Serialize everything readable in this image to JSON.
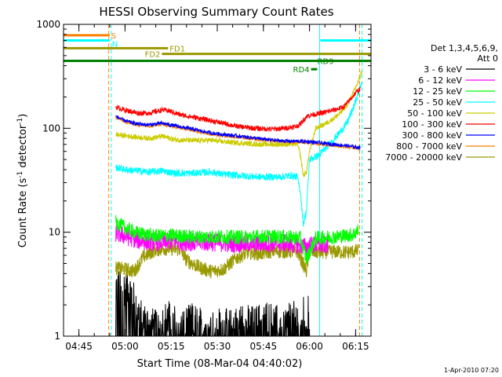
{
  "chart_data": {
    "type": "line",
    "title": "HESSI Observing Summary Count Rates",
    "xlabel": "Start Time (08-Mar-04 04:40:02)",
    "ylabel_parts": [
      "Count Rate (s",
      "-1",
      " detector",
      "-1",
      ")"
    ],
    "yscale": "log",
    "ylim": [
      1,
      1000
    ],
    "xlim_minutes": [
      0,
      100
    ],
    "x_ticks": [
      {
        "t": 5,
        "label": "04:45"
      },
      {
        "t": 20,
        "label": "05:00"
      },
      {
        "t": 35,
        "label": "05:15"
      },
      {
        "t": 50,
        "label": "05:30"
      },
      {
        "t": 65,
        "label": "05:45"
      },
      {
        "t": 80,
        "label": "06:00"
      },
      {
        "t": 95,
        "label": "06:15"
      }
    ],
    "y_ticks": [
      {
        "v": 1,
        "label": "1"
      },
      {
        "v": 10,
        "label": "10"
      },
      {
        "v": 100,
        "label": "100"
      },
      {
        "v": 1000,
        "label": "1000"
      }
    ],
    "legend_header": [
      "Det 1,3,4,5,6,9,",
      "Att 0"
    ],
    "series": [
      {
        "name": "3 - 6 keV",
        "color": "#000000",
        "points": [
          [
            17,
            3
          ],
          [
            20,
            2.9
          ],
          [
            22,
            2.6
          ],
          [
            24,
            1.8
          ],
          [
            26,
            1.4
          ],
          [
            30,
            1.2
          ],
          [
            34,
            1.5
          ],
          [
            38,
            1.2
          ],
          [
            42,
            1.4
          ],
          [
            46,
            1.2
          ],
          [
            50,
            1.3
          ],
          [
            54,
            1.2
          ],
          [
            58,
            1.4
          ],
          [
            62,
            1.3
          ],
          [
            66,
            1.5
          ],
          [
            70,
            1.3
          ],
          [
            74,
            1.4
          ],
          [
            78,
            1.6
          ],
          [
            80,
            1.8
          ]
        ],
        "noise": 0.18
      },
      {
        "name": "6 - 12 keV",
        "color": "#ff00ff",
        "points": [
          [
            17,
            9.8
          ],
          [
            20,
            9.2
          ],
          [
            24,
            8.4
          ],
          [
            30,
            8.0
          ],
          [
            36,
            8.2
          ],
          [
            42,
            8.0
          ],
          [
            48,
            8.0
          ],
          [
            54,
            7.8
          ],
          [
            60,
            7.8
          ],
          [
            66,
            7.8
          ],
          [
            72,
            7.8
          ],
          [
            76,
            7.6
          ],
          [
            79,
            7.2
          ],
          [
            80,
            7.5
          ],
          [
            84,
            7.5
          ],
          [
            86,
            7.6
          ]
        ],
        "noise": 0.09
      },
      {
        "name": "12 - 25 keV",
        "color": "#00ff00",
        "points": [
          [
            17,
            12.5
          ],
          [
            20,
            11
          ],
          [
            24,
            9.8
          ],
          [
            30,
            9.2
          ],
          [
            36,
            9.3
          ],
          [
            42,
            9.0
          ],
          [
            48,
            9.0
          ],
          [
            54,
            9.0
          ],
          [
            60,
            9.0
          ],
          [
            66,
            9.1
          ],
          [
            72,
            9.0
          ],
          [
            77,
            8.8
          ],
          [
            79,
            5.5
          ],
          [
            80,
            6.5
          ],
          [
            82,
            8.8
          ],
          [
            88,
            9.0
          ],
          [
            94,
            9.5
          ],
          [
            96,
            10.5
          ]
        ],
        "noise": 0.07
      },
      {
        "name": "25 - 50 keV",
        "color": "#00ffff",
        "points": [
          [
            17,
            42
          ],
          [
            20,
            40
          ],
          [
            24,
            39
          ],
          [
            28,
            38
          ],
          [
            32,
            39
          ],
          [
            36,
            37
          ],
          [
            42,
            37
          ],
          [
            48,
            38
          ],
          [
            52,
            36
          ],
          [
            58,
            35
          ],
          [
            64,
            34
          ],
          [
            70,
            34
          ],
          [
            74,
            35
          ],
          [
            76,
            34
          ],
          [
            77,
            25
          ],
          [
            78,
            12
          ],
          [
            79,
            16
          ],
          [
            80,
            50
          ],
          [
            83,
            55
          ],
          [
            86,
            68
          ],
          [
            89,
            85
          ],
          [
            92,
            110
          ],
          [
            94,
            150
          ],
          [
            96,
            220
          ],
          [
            97,
            280
          ]
        ],
        "noise": 0.035
      },
      {
        "name": "50 - 100 keV",
        "color": "#cccc00",
        "points": [
          [
            17,
            87
          ],
          [
            20,
            85
          ],
          [
            24,
            82
          ],
          [
            28,
            80
          ],
          [
            32,
            84
          ],
          [
            36,
            78
          ],
          [
            42,
            76
          ],
          [
            48,
            77
          ],
          [
            52,
            74
          ],
          [
            58,
            72
          ],
          [
            64,
            70
          ],
          [
            70,
            70
          ],
          [
            74,
            70
          ],
          [
            76,
            72
          ],
          [
            77,
            55
          ],
          [
            78,
            35
          ],
          [
            79,
            38
          ],
          [
            80,
            60
          ],
          [
            82,
            100
          ],
          [
            85,
            110
          ],
          [
            88,
            125
          ],
          [
            90,
            140
          ],
          [
            92,
            165
          ],
          [
            94,
            210
          ],
          [
            96,
            290
          ],
          [
            97,
            350
          ]
        ],
        "noise": 0.025
      },
      {
        "name": "100 - 300 keV",
        "color": "#ff0000",
        "points": [
          [
            17,
            160
          ],
          [
            20,
            150
          ],
          [
            24,
            140
          ],
          [
            28,
            140
          ],
          [
            32,
            150
          ],
          [
            34,
            148
          ],
          [
            38,
            135
          ],
          [
            44,
            125
          ],
          [
            50,
            115
          ],
          [
            56,
            105
          ],
          [
            62,
            100
          ],
          [
            68,
            98
          ],
          [
            72,
            100
          ],
          [
            76,
            105
          ],
          [
            77,
            110
          ],
          [
            79,
            130
          ],
          [
            81,
            135
          ],
          [
            84,
            140
          ],
          [
            88,
            150
          ],
          [
            91,
            160
          ],
          [
            93,
            185
          ],
          [
            95,
            220
          ],
          [
            96.5,
            240
          ]
        ],
        "noise": 0.025
      },
      {
        "name": "300 - 800 keV",
        "color": "#0000ff",
        "points": [
          [
            17,
            130
          ],
          [
            20,
            118
          ],
          [
            24,
            110
          ],
          [
            28,
            108
          ],
          [
            32,
            112
          ],
          [
            36,
            106
          ],
          [
            42,
            98
          ],
          [
            48,
            90
          ],
          [
            54,
            86
          ],
          [
            60,
            82
          ],
          [
            66,
            78
          ],
          [
            70,
            76
          ],
          [
            74,
            75
          ],
          [
            77,
            75
          ],
          [
            80,
            74
          ],
          [
            84,
            72
          ],
          [
            88,
            70
          ],
          [
            92,
            68
          ],
          [
            95,
            66
          ],
          [
            96.5,
            65
          ]
        ],
        "noise": 0.018
      },
      {
        "name": "800 - 7000 keV",
        "color": "#ff8000",
        "points": [
          [
            17,
            128
          ],
          [
            20,
            116
          ],
          [
            24,
            108
          ],
          [
            28,
            106
          ],
          [
            32,
            110
          ],
          [
            36,
            104
          ],
          [
            42,
            96
          ],
          [
            48,
            88
          ],
          [
            54,
            84
          ],
          [
            60,
            80
          ],
          [
            66,
            77
          ],
          [
            70,
            75
          ],
          [
            74,
            74
          ],
          [
            77,
            74
          ],
          [
            80,
            73
          ],
          [
            84,
            70
          ],
          [
            88,
            68
          ],
          [
            92,
            66
          ],
          [
            95,
            65
          ],
          [
            96.5,
            64
          ]
        ],
        "noise": 0.018
      },
      {
        "name": "7000 - 20000 keV",
        "color": "#999900",
        "points": [
          [
            17,
            4.5
          ],
          [
            20,
            4.4
          ],
          [
            23,
            4.2
          ],
          [
            26,
            5.8
          ],
          [
            30,
            6.8
          ],
          [
            34,
            7.0
          ],
          [
            38,
            6.8
          ],
          [
            40,
            5.4
          ],
          [
            44,
            4.6
          ],
          [
            48,
            4.2
          ],
          [
            52,
            4.4
          ],
          [
            56,
            5.6
          ],
          [
            60,
            6.4
          ],
          [
            64,
            6.2
          ],
          [
            68,
            6.6
          ],
          [
            72,
            6.5
          ],
          [
            76,
            6.6
          ],
          [
            79,
            4.2
          ],
          [
            80,
            6.5
          ],
          [
            84,
            6.4
          ],
          [
            88,
            6.5
          ],
          [
            92,
            6.4
          ],
          [
            96,
            6.6
          ]
        ],
        "noise": 0.07
      }
    ],
    "flag_bars": [
      {
        "label": "S",
        "color": "#ff8000",
        "t0": 0,
        "t1": 15,
        "y": 785,
        "label_at": "end"
      },
      {
        "label": "N",
        "color": "#00ffff",
        "t0": 0,
        "t1": 15,
        "y": 700,
        "label_at": "end-low"
      },
      {
        "label": "N",
        "color": "#00ffff",
        "t0": 83.5,
        "t1": 100,
        "y": 700,
        "label_at": "none"
      },
      {
        "label": "FD1",
        "color": "#999900",
        "t0": 0,
        "t1": 34,
        "y": 590,
        "label_at": "end"
      },
      {
        "label": "FD2",
        "color": "#999900",
        "t0": 32,
        "t1": 100,
        "y": 520,
        "label_at": "start"
      },
      {
        "label": "",
        "color": "#008000",
        "t0": 0,
        "t1": 100,
        "y": 445,
        "label_at": "none"
      },
      {
        "label": "RD9",
        "color": "#008000",
        "t0": 81,
        "t1": 100,
        "y": 445,
        "label_at": "mid"
      },
      {
        "label": "RD4",
        "color": "#008000",
        "t0": 80.5,
        "t1": 82.5,
        "y": 370,
        "label_at": "start"
      }
    ],
    "vlines": [
      {
        "t": 14.7,
        "color": "#ff8000",
        "dash": true
      },
      {
        "t": 15.5,
        "color": "#00ffff",
        "dash": true
      },
      {
        "t": 83.3,
        "color": "#00ffff",
        "dash": false
      },
      {
        "t": 96.3,
        "color": "#ff8000",
        "dash": true
      },
      {
        "t": 97.1,
        "color": "#00ffff",
        "dash": true
      }
    ],
    "grid": false
  },
  "footer": {
    "timestamp": "1-Apr-2010 07:20"
  }
}
